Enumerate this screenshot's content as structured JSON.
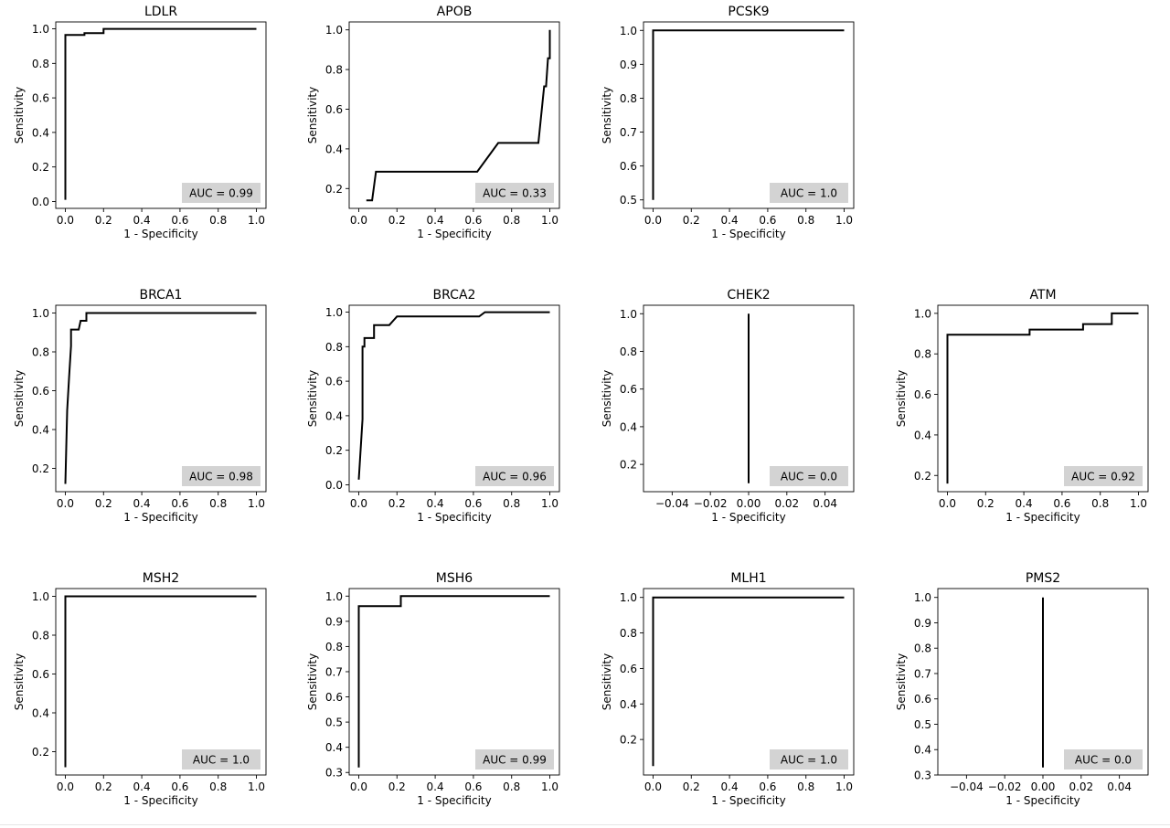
{
  "chart_data": [
    {
      "type": "line",
      "title": "LDLR",
      "xlabel": "1 - Specificity",
      "ylabel": "Sensitivity",
      "xlim": [
        -0.05,
        1.05
      ],
      "ylim": [
        -0.04,
        1.04
      ],
      "xticks": [
        0.0,
        0.2,
        0.4,
        0.6,
        0.8,
        1.0
      ],
      "yticks": [
        0.0,
        0.2,
        0.4,
        0.6,
        0.8,
        1.0
      ],
      "xtick_labels": [
        "0.0",
        "0.2",
        "0.4",
        "0.6",
        "0.8",
        "1.0"
      ],
      "ytick_labels": [
        "0.0",
        "0.2",
        "0.4",
        "0.6",
        "0.8",
        "1.0"
      ],
      "x": [
        0.0,
        0.0,
        0.1,
        0.1,
        0.2,
        0.2,
        1.0
      ],
      "y": [
        0.01,
        0.965,
        0.965,
        0.975,
        0.975,
        1.0,
        1.0
      ],
      "annotation": "AUC = 0.99",
      "grid": false
    },
    {
      "type": "line",
      "title": "APOB",
      "xlabel": "1 - Specificity",
      "ylabel": "Sensitivity",
      "xlim": [
        -0.05,
        1.05
      ],
      "ylim": [
        0.1,
        1.04
      ],
      "xticks": [
        0.0,
        0.2,
        0.4,
        0.6,
        0.8,
        1.0
      ],
      "yticks": [
        0.2,
        0.4,
        0.6,
        0.8,
        1.0
      ],
      "xtick_labels": [
        "0.0",
        "0.2",
        "0.4",
        "0.6",
        "0.8",
        "1.0"
      ],
      "ytick_labels": [
        "0.2",
        "0.4",
        "0.6",
        "0.8",
        "1.0"
      ],
      "x": [
        0.04,
        0.07,
        0.09,
        0.62,
        0.73,
        0.94,
        0.97,
        0.98,
        0.99,
        1.0,
        1.0
      ],
      "y": [
        0.14,
        0.14,
        0.285,
        0.285,
        0.43,
        0.43,
        0.715,
        0.715,
        0.857,
        0.857,
        1.0
      ],
      "annotation": "AUC = 0.33",
      "grid": false
    },
    {
      "type": "line",
      "title": "PCSK9",
      "xlabel": "1 - Specificity",
      "ylabel": "Sensitivity",
      "xlim": [
        -0.05,
        1.05
      ],
      "ylim": [
        0.475,
        1.025
      ],
      "xticks": [
        0.0,
        0.2,
        0.4,
        0.6,
        0.8,
        1.0
      ],
      "yticks": [
        0.5,
        0.6,
        0.7,
        0.8,
        0.9,
        1.0
      ],
      "xtick_labels": [
        "0.0",
        "0.2",
        "0.4",
        "0.6",
        "0.8",
        "1.0"
      ],
      "ytick_labels": [
        "0.5",
        "0.6",
        "0.7",
        "0.8",
        "0.9",
        "1.0"
      ],
      "x": [
        0.0,
        0.0,
        1.0
      ],
      "y": [
        0.5,
        1.0,
        1.0
      ],
      "annotation": "AUC = 1.0",
      "grid": false
    },
    {
      "type": "line",
      "title": "BRCA1",
      "xlabel": "1 - Specificity",
      "ylabel": "Sensitivity",
      "xlim": [
        -0.05,
        1.05
      ],
      "ylim": [
        0.08,
        1.04
      ],
      "xticks": [
        0.0,
        0.2,
        0.4,
        0.6,
        0.8,
        1.0
      ],
      "yticks": [
        0.2,
        0.4,
        0.6,
        0.8,
        1.0
      ],
      "xtick_labels": [
        "0.0",
        "0.2",
        "0.4",
        "0.6",
        "0.8",
        "1.0"
      ],
      "ytick_labels": [
        "0.2",
        "0.4",
        "0.6",
        "0.8",
        "1.0"
      ],
      "x": [
        0.0,
        0.01,
        0.02,
        0.03,
        0.03,
        0.07,
        0.08,
        0.1,
        0.11,
        0.11,
        1.0
      ],
      "y": [
        0.12,
        0.5,
        0.67,
        0.83,
        0.915,
        0.915,
        0.96,
        0.96,
        0.96,
        1.0,
        1.0
      ],
      "annotation": "AUC = 0.98",
      "grid": false
    },
    {
      "type": "line",
      "title": "BRCA2",
      "xlabel": "1 - Specificity",
      "ylabel": "Sensitivity",
      "xlim": [
        -0.05,
        1.05
      ],
      "ylim": [
        -0.04,
        1.04
      ],
      "xticks": [
        0.0,
        0.2,
        0.4,
        0.6,
        0.8,
        1.0
      ],
      "yticks": [
        0.0,
        0.2,
        0.4,
        0.6,
        0.8,
        1.0
      ],
      "xtick_labels": [
        "0.0",
        "0.2",
        "0.4",
        "0.6",
        "0.8",
        "1.0"
      ],
      "ytick_labels": [
        "0.0",
        "0.2",
        "0.4",
        "0.6",
        "0.8",
        "1.0"
      ],
      "x": [
        0.0,
        0.02,
        0.02,
        0.03,
        0.03,
        0.07,
        0.08,
        0.08,
        0.16,
        0.18,
        0.2,
        0.63,
        0.66,
        1.0
      ],
      "y": [
        0.03,
        0.38,
        0.8,
        0.8,
        0.85,
        0.85,
        0.85,
        0.925,
        0.925,
        0.95,
        0.975,
        0.975,
        1.0,
        1.0
      ],
      "annotation": "AUC = 0.96",
      "grid": false
    },
    {
      "type": "line",
      "title": "CHEK2",
      "xlabel": "1 - Specificity",
      "ylabel": "Sensitivity",
      "xlim": [
        -0.055,
        0.055
      ],
      "ylim": [
        0.055,
        1.045
      ],
      "xticks": [
        -0.04,
        -0.02,
        0.0,
        0.02,
        0.04
      ],
      "yticks": [
        0.2,
        0.4,
        0.6,
        0.8,
        1.0
      ],
      "xtick_labels": [
        "−0.04",
        "−0.02",
        "0.00",
        "0.02",
        "0.04"
      ],
      "ytick_labels": [
        "0.2",
        "0.4",
        "0.6",
        "0.8",
        "1.0"
      ],
      "x": [
        0.0,
        0.0
      ],
      "y": [
        0.1,
        1.0
      ],
      "annotation": "AUC = 0.0",
      "grid": false
    },
    {
      "type": "line",
      "title": "ATM",
      "xlabel": "1 - Specificity",
      "ylabel": "Sensitivity",
      "xlim": [
        -0.05,
        1.05
      ],
      "ylim": [
        0.12,
        1.04
      ],
      "xticks": [
        0.0,
        0.2,
        0.4,
        0.6,
        0.8,
        1.0
      ],
      "yticks": [
        0.2,
        0.4,
        0.6,
        0.8,
        1.0
      ],
      "xtick_labels": [
        "0.0",
        "0.2",
        "0.4",
        "0.6",
        "0.8",
        "1.0"
      ],
      "ytick_labels": [
        "0.2",
        "0.4",
        "0.6",
        "0.8",
        "1.0"
      ],
      "x": [
        0.0,
        0.0,
        0.43,
        0.43,
        0.71,
        0.71,
        0.86,
        0.86,
        1.0
      ],
      "y": [
        0.16,
        0.895,
        0.895,
        0.92,
        0.92,
        0.947,
        0.947,
        1.0,
        1.0
      ],
      "annotation": "AUC = 0.92",
      "grid": false
    },
    {
      "type": "line",
      "title": "MSH2",
      "xlabel": "1 - Specificity",
      "ylabel": "Sensitivity",
      "xlim": [
        -0.05,
        1.05
      ],
      "ylim": [
        0.08,
        1.04
      ],
      "xticks": [
        0.0,
        0.2,
        0.4,
        0.6,
        0.8,
        1.0
      ],
      "yticks": [
        0.2,
        0.4,
        0.6,
        0.8,
        1.0
      ],
      "xtick_labels": [
        "0.0",
        "0.2",
        "0.4",
        "0.6",
        "0.8",
        "1.0"
      ],
      "ytick_labels": [
        "0.2",
        "0.4",
        "0.6",
        "0.8",
        "1.0"
      ],
      "x": [
        0.0,
        0.0,
        1.0
      ],
      "y": [
        0.12,
        1.0,
        1.0
      ],
      "annotation": "AUC = 1.0",
      "grid": false
    },
    {
      "type": "line",
      "title": "MSH6",
      "xlabel": "1 - Specificity",
      "ylabel": "Sensitivity",
      "xlim": [
        -0.05,
        1.05
      ],
      "ylim": [
        0.29,
        1.03
      ],
      "xticks": [
        0.0,
        0.2,
        0.4,
        0.6,
        0.8,
        1.0
      ],
      "yticks": [
        0.3,
        0.4,
        0.5,
        0.6,
        0.7,
        0.8,
        0.9,
        1.0
      ],
      "xtick_labels": [
        "0.0",
        "0.2",
        "0.4",
        "0.6",
        "0.8",
        "1.0"
      ],
      "ytick_labels": [
        "0.3",
        "0.4",
        "0.5",
        "0.6",
        "0.7",
        "0.8",
        "0.9",
        "1.0"
      ],
      "x": [
        0.0,
        0.0,
        0.22,
        0.22,
        1.0
      ],
      "y": [
        0.32,
        0.96,
        0.96,
        1.0,
        1.0
      ],
      "annotation": "AUC = 0.99",
      "grid": false
    },
    {
      "type": "line",
      "title": "MLH1",
      "xlabel": "1 - Specificity",
      "ylabel": "Sensitivity",
      "xlim": [
        -0.05,
        1.05
      ],
      "ylim": [
        0.0,
        1.05
      ],
      "xticks": [
        0.0,
        0.2,
        0.4,
        0.6,
        0.8,
        1.0
      ],
      "yticks": [
        0.2,
        0.4,
        0.6,
        0.8,
        1.0
      ],
      "xtick_labels": [
        "0.0",
        "0.2",
        "0.4",
        "0.6",
        "0.8",
        "1.0"
      ],
      "ytick_labels": [
        "0.2",
        "0.4",
        "0.6",
        "0.8",
        "1.0"
      ],
      "x": [
        0.0,
        0.0,
        1.0
      ],
      "y": [
        0.05,
        1.0,
        1.0
      ],
      "annotation": "AUC = 1.0",
      "grid": false
    },
    {
      "type": "line",
      "title": "PMS2",
      "xlabel": "1 - Specificity",
      "ylabel": "Sensitivity",
      "xlim": [
        -0.055,
        0.055
      ],
      "ylim": [
        0.3,
        1.035
      ],
      "xticks": [
        -0.04,
        -0.02,
        0.0,
        0.02,
        0.04
      ],
      "yticks": [
        0.3,
        0.4,
        0.5,
        0.6,
        0.7,
        0.8,
        0.9,
        1.0
      ],
      "xtick_labels": [
        "−0.04",
        "−0.02",
        "0.00",
        "0.02",
        "0.04"
      ],
      "ytick_labels": [
        "0.3",
        "0.4",
        "0.5",
        "0.6",
        "0.7",
        "0.8",
        "0.9",
        "1.0"
      ],
      "x": [
        0.0,
        0.0
      ],
      "y": [
        0.33,
        1.0
      ],
      "annotation": "AUC = 0.0",
      "grid": false
    }
  ]
}
